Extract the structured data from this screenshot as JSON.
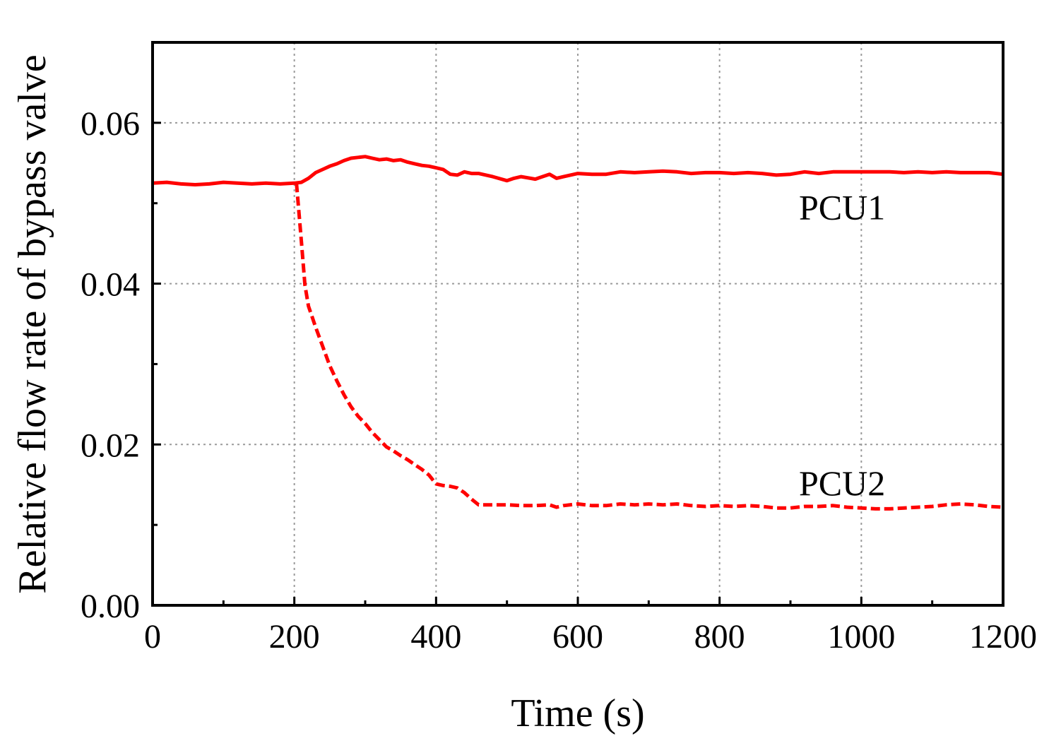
{
  "chart_data": {
    "type": "line",
    "title": "",
    "xlabel": "Time (s)",
    "ylabel": "Relative flow rate of bypass valve",
    "xlim": [
      0,
      1200
    ],
    "ylim": [
      0,
      0.07
    ],
    "x_ticks": [
      0,
      200,
      400,
      600,
      800,
      1000,
      1200
    ],
    "x_tick_labels": [
      "0",
      "200",
      "400",
      "600",
      "800",
      "1000",
      "1200"
    ],
    "x_minor_ticks": [
      100,
      300,
      500,
      700,
      900,
      1100
    ],
    "y_ticks": [
      0,
      0.02,
      0.04,
      0.06
    ],
    "y_tick_labels": [
      "0.00",
      "0.02",
      "0.04",
      "0.06"
    ],
    "y_minor_ticks": [
      0.01,
      0.03,
      0.05
    ],
    "grid": true,
    "series": [
      {
        "name": "PCU1",
        "label": "PCU1",
        "label_at": [
          900,
          0.0495
        ],
        "color": "#ff0000",
        "style": "solid",
        "x": [
          0,
          20,
          40,
          60,
          80,
          100,
          120,
          140,
          160,
          180,
          200,
          210,
          220,
          230,
          240,
          250,
          260,
          270,
          280,
          290,
          300,
          310,
          320,
          330,
          340,
          350,
          360,
          370,
          380,
          390,
          400,
          410,
          420,
          430,
          440,
          450,
          460,
          480,
          500,
          510,
          520,
          540,
          560,
          570,
          580,
          600,
          620,
          640,
          660,
          680,
          700,
          720,
          740,
          760,
          780,
          800,
          820,
          840,
          860,
          880,
          900,
          920,
          940,
          960,
          980,
          1000,
          1020,
          1040,
          1060,
          1080,
          1100,
          1120,
          1140,
          1160,
          1180,
          1200
        ],
        "y": [
          0.0525,
          0.0526,
          0.0524,
          0.0523,
          0.0524,
          0.0526,
          0.0525,
          0.0524,
          0.0525,
          0.0524,
          0.0525,
          0.0526,
          0.0531,
          0.0538,
          0.0542,
          0.0546,
          0.0549,
          0.0553,
          0.0556,
          0.0557,
          0.0558,
          0.0556,
          0.0554,
          0.0555,
          0.0553,
          0.0554,
          0.0551,
          0.0549,
          0.0547,
          0.0546,
          0.0544,
          0.0542,
          0.0536,
          0.0535,
          0.0539,
          0.0537,
          0.0537,
          0.0533,
          0.0528,
          0.0531,
          0.0533,
          0.053,
          0.0536,
          0.0531,
          0.0533,
          0.0537,
          0.0536,
          0.0536,
          0.0539,
          0.0538,
          0.0539,
          0.054,
          0.0539,
          0.0537,
          0.0538,
          0.0538,
          0.0537,
          0.0538,
          0.0537,
          0.0535,
          0.0536,
          0.0539,
          0.0537,
          0.0539,
          0.0539,
          0.0539,
          0.0539,
          0.0539,
          0.0538,
          0.0539,
          0.0538,
          0.0539,
          0.0538,
          0.0538,
          0.0538,
          0.0536
        ]
      },
      {
        "name": "PCU2",
        "label": "PCU2",
        "label_at": [
          900,
          0.0152
        ],
        "color": "#ff0000",
        "style": "dashed",
        "x": [
          203,
          210,
          215,
          220,
          230,
          240,
          250,
          260,
          270,
          280,
          290,
          300,
          310,
          320,
          330,
          340,
          350,
          360,
          370,
          380,
          390,
          400,
          410,
          420,
          430,
          440,
          450,
          460,
          480,
          500,
          520,
          540,
          560,
          570,
          580,
          600,
          620,
          640,
          660,
          680,
          700,
          720,
          740,
          760,
          780,
          800,
          820,
          840,
          860,
          880,
          900,
          920,
          940,
          960,
          980,
          1000,
          1020,
          1040,
          1060,
          1080,
          1100,
          1120,
          1140,
          1160,
          1180,
          1200
        ],
        "y": [
          0.0525,
          0.0452,
          0.0398,
          0.0372,
          0.0346,
          0.0322,
          0.0298,
          0.0279,
          0.0262,
          0.0247,
          0.0235,
          0.0226,
          0.0215,
          0.0206,
          0.0197,
          0.0192,
          0.0186,
          0.0181,
          0.0175,
          0.0169,
          0.0162,
          0.0151,
          0.0149,
          0.0148,
          0.0146,
          0.014,
          0.0132,
          0.0125,
          0.0125,
          0.0125,
          0.0124,
          0.0124,
          0.0125,
          0.0122,
          0.0124,
          0.0126,
          0.0124,
          0.0124,
          0.0126,
          0.0125,
          0.0126,
          0.0125,
          0.0126,
          0.0124,
          0.0123,
          0.0124,
          0.0123,
          0.0124,
          0.0123,
          0.0121,
          0.0121,
          0.0123,
          0.0123,
          0.0124,
          0.0122,
          0.0121,
          0.012,
          0.012,
          0.0121,
          0.0122,
          0.0123,
          0.0125,
          0.0126,
          0.0125,
          0.0123,
          0.0122
        ]
      }
    ]
  }
}
